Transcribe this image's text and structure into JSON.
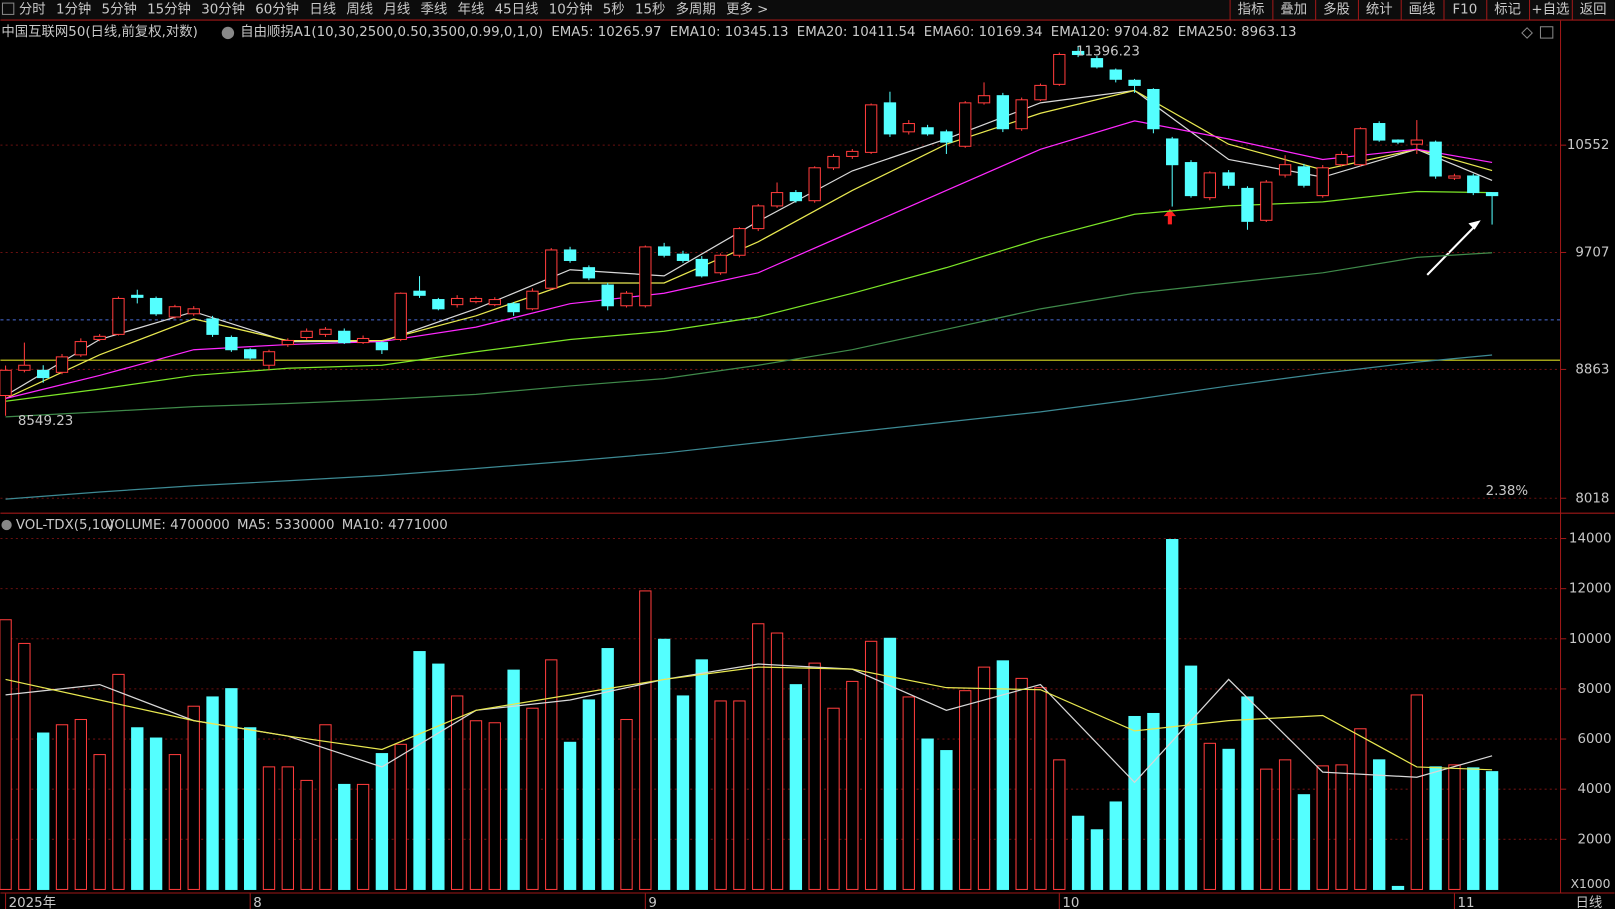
{
  "toolbar": {
    "periods": [
      "分时",
      "1分钟",
      "5分钟",
      "15分钟",
      "30分钟",
      "60分钟",
      "日线",
      "周线",
      "月线",
      "季线",
      "年线",
      "45日线",
      "10分钟",
      "5秒",
      "15秒",
      "多周期",
      "更多 >"
    ],
    "active": 6,
    "tools": [
      "指标",
      "叠加",
      "多股",
      "统计",
      "画线",
      "F10",
      "标记",
      "+自选",
      "返回"
    ]
  },
  "xaxis": {
    "labels": [
      {
        "index": 0,
        "label": "2025年"
      },
      {
        "index": 13,
        "label": "8"
      },
      {
        "index": 34,
        "label": "9"
      },
      {
        "index": 56,
        "label": "10"
      },
      {
        "index": 77,
        "label": "11"
      }
    ],
    "period_label": "日线"
  },
  "chart_data": [
    {
      "type": "candlestick",
      "title": "中国互联网50(日线,前复权,对数)",
      "indicator": "自由顺拐A1(10,30,2500,0.50,3500,0.99,0,1,0)",
      "log_scale": true,
      "up_color": "#ff3c3c",
      "down_color": "#54ffff",
      "open": [
        8685,
        8857,
        8857,
        8843,
        8964,
        9072,
        9108,
        9389,
        9366,
        9232,
        9255,
        9218,
        9086,
        9000,
        8892,
        9036,
        9086,
        9108,
        9130,
        9050,
        9050,
        9072,
        9419,
        9358,
        9321,
        9343,
        9321,
        9328,
        9291,
        9441,
        9726,
        9593,
        9464,
        9313,
        9313,
        9749,
        9694,
        9655,
        9555,
        9686,
        9889,
        10065,
        10170,
        10106,
        10368,
        10460,
        10493,
        10905,
        10662,
        10696,
        10662,
        10543,
        10905,
        10966,
        10688,
        10931,
        11063,
        11350,
        11287,
        11187,
        11098,
        11019,
        10603,
        10410,
        10130,
        10327,
        10203,
        9953,
        10310,
        10376,
        10146,
        10393,
        10393,
        10731,
        10594,
        10560,
        10577,
        10285,
        10302,
        10170
      ],
      "high": [
        8890,
        9050,
        8892,
        8970,
        9080,
        9110,
        9380,
        9430,
        9380,
        9320,
        9310,
        9240,
        9100,
        9010,
        9000,
        9080,
        9150,
        9160,
        9150,
        9100,
        9060,
        9410,
        9530,
        9370,
        9390,
        9380,
        9375,
        9340,
        9440,
        9740,
        9750,
        9610,
        9480,
        9420,
        9760,
        9780,
        9720,
        9680,
        9700,
        9900,
        10080,
        10250,
        10190,
        10380,
        10480,
        10520,
        10900,
        11000,
        10760,
        10720,
        10680,
        10920,
        11080,
        10990,
        10950,
        11070,
        11340,
        11396.23,
        11310,
        11200,
        11110,
        11030,
        10620,
        10430,
        10340,
        10350,
        10220,
        10270,
        10470,
        10400,
        10390,
        10500,
        10700,
        10750,
        10600,
        10760,
        10590,
        10320,
        10320,
        10170
      ],
      "low": [
        8549.23,
        8843,
        8772,
        8830,
        8950,
        9060,
        9100,
        9330,
        9240,
        9220,
        9240,
        9090,
        8985,
        8930,
        8857,
        9020,
        9070,
        9090,
        9040,
        9040,
        8970,
        9060,
        9370,
        9280,
        9300,
        9330,
        9310,
        9240,
        9280,
        9430,
        9630,
        9500,
        9280,
        9300,
        9300,
        9670,
        9630,
        9520,
        9540,
        9670,
        9870,
        10050,
        10090,
        10090,
        10350,
        10440,
        10480,
        10620,
        10640,
        10630,
        10480,
        10530,
        10890,
        10660,
        10670,
        10920,
        11050,
        11300,
        11200,
        11080,
        10990,
        10650,
        10060,
        10130,
        10110,
        10200,
        9880,
        9940,
        10290,
        10210,
        10130,
        10380,
        10380,
        10580,
        10560,
        10480,
        10280,
        10270,
        10150,
        9920
      ],
      "close": [
        8857,
        8892,
        8807,
        8950,
        9057,
        9094,
        9366,
        9374,
        9255,
        9306,
        9291,
        9108,
        9000,
        8942,
        8986,
        9065,
        9130,
        9144,
        9050,
        9079,
        9000,
        9404,
        9389,
        9291,
        9366,
        9366,
        9358,
        9270,
        9419,
        9726,
        9647,
        9517,
        9313,
        9404,
        9749,
        9686,
        9647,
        9532,
        9686,
        9889,
        10065,
        10170,
        10106,
        10368,
        10460,
        10501,
        10888,
        10645,
        10731,
        10645,
        10577,
        10905,
        10966,
        10688,
        10931,
        11054,
        11323,
        11323,
        11214,
        11107,
        11054,
        10688,
        10393,
        10146,
        10327,
        10228,
        9945,
        10253,
        10393,
        10228,
        10368,
        10476,
        10688,
        10594,
        10577,
        10594,
        10302,
        10302,
        10170,
        10146
      ],
      "lines": [
        {
          "name": "EMA5",
          "legend_text": "EMA5: 10265.97",
          "color": "#d8d8d8",
          "x": [
            0,
            5,
            10,
            15,
            20,
            25,
            30,
            35,
            40,
            45,
            50,
            55,
            60,
            65,
            70,
            75,
            79
          ],
          "values": [
            8685,
            9072,
            9270,
            9057,
            9057,
            9291,
            9578,
            9532,
            9945,
            10343,
            10603,
            10905,
            11010,
            10435,
            10293,
            10518,
            10265.97
          ]
        },
        {
          "name": "EMA10",
          "legend_text": "EMA10: 10345.13",
          "color": "#e8e850",
          "x": [
            0,
            5,
            10,
            15,
            20,
            25,
            30,
            35,
            40,
            45,
            50,
            55,
            60,
            65,
            70,
            75,
            79
          ],
          "values": [
            8665,
            8964,
            9218,
            9064,
            9064,
            9240,
            9479,
            9479,
            9788,
            10187,
            10560,
            10817,
            11010,
            10560,
            10351,
            10518,
            10345.13
          ]
        },
        {
          "name": "EMA20",
          "legend_text": "EMA20: 10411.54",
          "color": "#ff28ff",
          "x": [
            0,
            5,
            10,
            15,
            20,
            25,
            30,
            35,
            40,
            45,
            50,
            55,
            60,
            65,
            70,
            75,
            79
          ],
          "values": [
            8665,
            8822,
            9000,
            9036,
            9057,
            9159,
            9328,
            9404,
            9555,
            9866,
            10187,
            10518,
            10753,
            10603,
            10435,
            10518,
            10411.54
          ]
        },
        {
          "name": "EMA60",
          "legend_text": "EMA60: 10169.34",
          "color": "#7ce628",
          "x": [
            0,
            5,
            10,
            15,
            20,
            25,
            30,
            35,
            40,
            45,
            50,
            55,
            60,
            65,
            70,
            75,
            79
          ],
          "values": [
            8646,
            8728,
            8822,
            8871,
            8892,
            8986,
            9072,
            9130,
            9232,
            9404,
            9593,
            9811,
            10000,
            10065,
            10097,
            10179,
            10169.34
          ]
        },
        {
          "name": "EMA120",
          "legend_text": "EMA120: 9704.82",
          "color": "#3f8a4a",
          "x": [
            0,
            5,
            10,
            15,
            20,
            25,
            30,
            35,
            40,
            45,
            50,
            55,
            60,
            65,
            70,
            75,
            79
          ],
          "values": [
            8542,
            8575,
            8610,
            8631,
            8658,
            8693,
            8750,
            8800,
            8892,
            9000,
            9144,
            9291,
            9404,
            9479,
            9555,
            9670,
            9704.82
          ]
        },
        {
          "name": "EMA250",
          "legend_text": "EMA250: 8963.13",
          "color": "#3d8a94",
          "x": [
            0,
            5,
            10,
            15,
            20,
            25,
            30,
            35,
            40,
            45,
            50,
            55,
            60,
            65,
            70,
            75,
            79
          ],
          "values": [
            8012,
            8057,
            8096,
            8128,
            8161,
            8206,
            8253,
            8305,
            8372,
            8440,
            8508,
            8575,
            8658,
            8750,
            8836,
            8913,
            8963.13
          ]
        }
      ],
      "levels": [
        {
          "value": 8927,
          "color": "#d8d820",
          "dashed": false
        },
        {
          "value": 9211,
          "color": "#4a6ed8",
          "dashed": true
        }
      ],
      "low_label": "8549.23",
      "high_label": "11396.23",
      "change_label": "2.38%",
      "ylim": [
        7935,
        11607
      ],
      "yticks": [
        10552,
        9707,
        8863,
        8018
      ],
      "grid": true
    },
    {
      "type": "bar",
      "title": "VOL-TDX(5,10)",
      "legend": [
        "VOLUME: 4700000",
        "MA5: 5330000",
        "MA10: 4771000"
      ],
      "legend_colors": [
        "#d8d8d8",
        "#d8d8d8",
        "#e8e850"
      ],
      "unit_label": "X1000",
      "values": [
        10760,
        9815,
        6240,
        6570,
        6780,
        5380,
        8580,
        6450,
        6040,
        5380,
        7310,
        7680,
        8010,
        6450,
        4890,
        4890,
        4350,
        6570,
        4190,
        4190,
        5420,
        5790,
        9490,
        8990,
        7720,
        6730,
        6650,
        8750,
        7230,
        9160,
        5870,
        7560,
        9610,
        6780,
        11910,
        9980,
        7720,
        9160,
        7520,
        7520,
        10600,
        10230,
        8170,
        9030,
        7230,
        8300,
        9900,
        10020,
        7680,
        6000,
        5540,
        7930,
        8870,
        9120,
        8420,
        8050,
        5170,
        2920,
        2380,
        3490,
        6900,
        7020,
        13960,
        8910,
        5830,
        5590,
        7680,
        4800,
        5170,
        3780,
        4930,
        4970,
        6410,
        5170,
        120,
        7760,
        4890,
        4970,
        4850,
        4700
      ],
      "lines": [
        {
          "name": "MA5",
          "color": "#d8d8d8",
          "x": [
            0,
            5,
            10,
            15,
            20,
            25,
            30,
            35,
            40,
            45,
            50,
            55,
            60,
            65,
            70,
            75,
            79
          ],
          "values": [
            7762,
            8173,
            6735,
            6119,
            4887,
            7146,
            7557,
            8378,
            8994,
            8789,
            7146,
            8173,
            4271,
            8378,
            4682,
            4477,
            5330
          ]
        },
        {
          "name": "MA10",
          "color": "#e8e850",
          "x": [
            0,
            5,
            10,
            15,
            20,
            25,
            30,
            35,
            40,
            45,
            50,
            55,
            60,
            65,
            70,
            75,
            79
          ],
          "values": [
            8378,
            7557,
            6735,
            6119,
            5586,
            7146,
            7762,
            8378,
            8871,
            8789,
            8050,
            7968,
            6325,
            6735,
            6941,
            4887,
            4771
          ]
        }
      ],
      "ylim": [
        0,
        14950
      ],
      "yticks": [
        14000,
        12000,
        10000,
        8000,
        6000,
        4000,
        2000
      ],
      "grid": true
    }
  ]
}
